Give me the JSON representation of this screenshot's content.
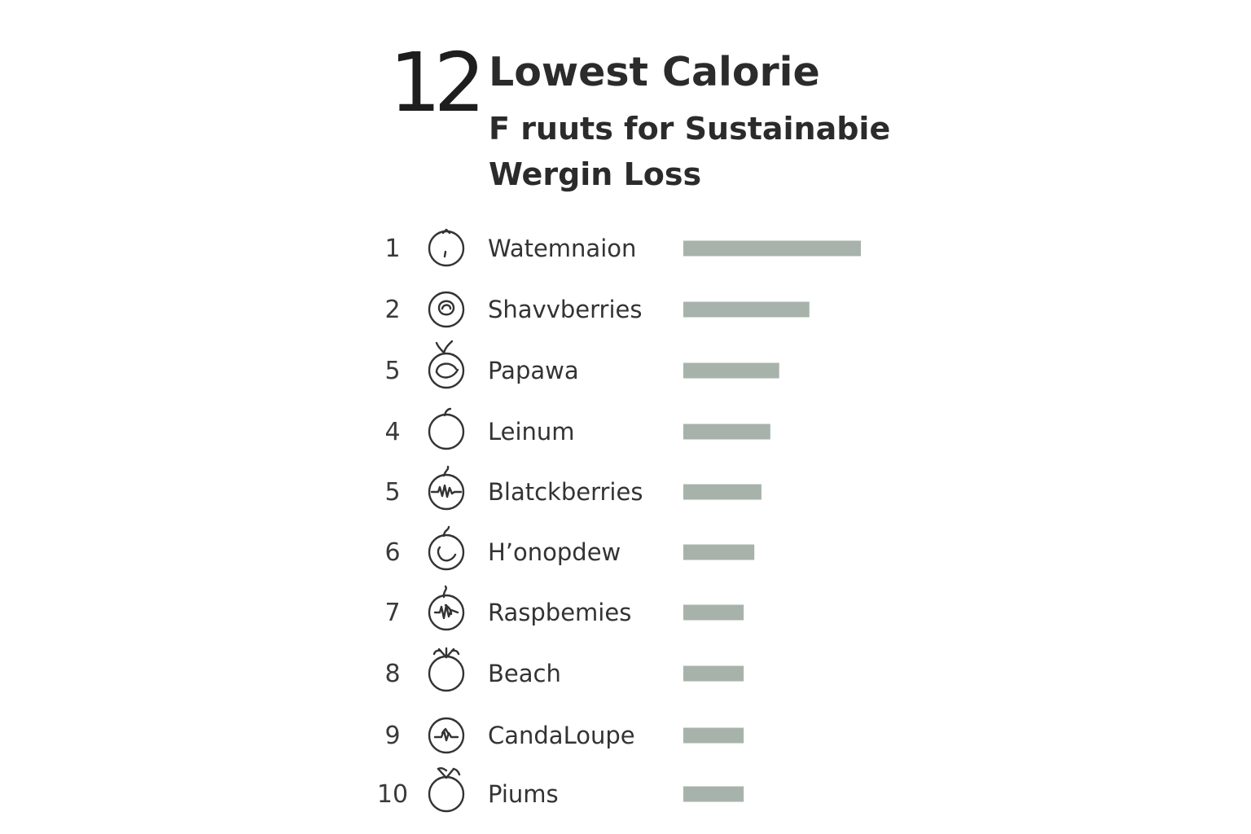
{
  "header": {
    "number": "12",
    "title": "Lowest Calorie",
    "subtitle_line1": "F ruuts for Sustainabie",
    "subtitle_line2": "Wergin Loss"
  },
  "colors": {
    "bar": "#a7b3aa",
    "text": "#2d2d2d",
    "icon_stroke": "#333333"
  },
  "chart_data": {
    "type": "bar",
    "orientation": "horizontal",
    "title": "Lowest Calorie F ruuts for Sustainabie Wergin Loss",
    "xlabel": "",
    "ylabel": "",
    "grid": false,
    "legend": "none",
    "value_axis_range": [
      0,
      100
    ],
    "categories": [
      "Watemnaion",
      "Shavvberries",
      "Papawa",
      "Leinum",
      "Blatckberries",
      "H’onopdew",
      "Raspbemies",
      "Beach",
      "CandaLoupe",
      "Piums"
    ],
    "ranks": [
      "1",
      "2",
      "5",
      "4",
      "5",
      "6",
      "7",
      "8",
      "9",
      "10"
    ],
    "icons": [
      "watermelon-icon",
      "strawberry-icon",
      "papaya-icon",
      "lemon-icon",
      "blackberry-icon",
      "honeydew-icon",
      "raspberry-icon",
      "peach-icon",
      "cantaloupe-icon",
      "plum-icon"
    ],
    "values": [
      100,
      71,
      54,
      49,
      44,
      40,
      34,
      34,
      34,
      34
    ]
  }
}
